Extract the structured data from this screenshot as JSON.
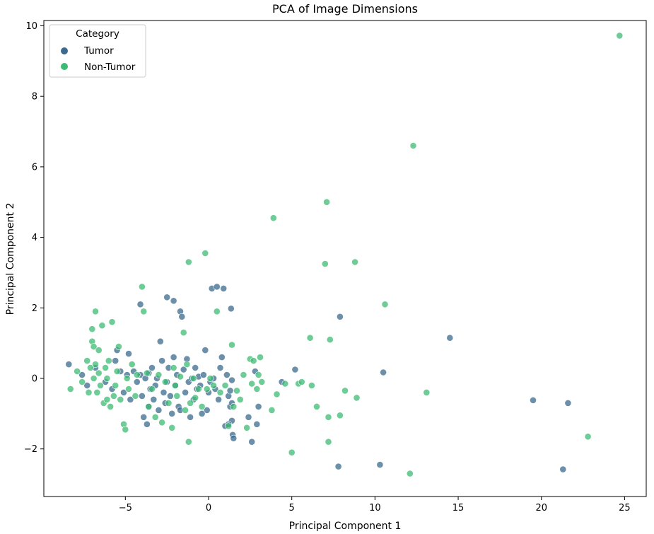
{
  "chart_data": {
    "type": "scatter",
    "title": "PCA of Image Dimensions",
    "xlabel": "Principal Component 1",
    "ylabel": "Principal Component 2",
    "xlim": [
      -9.9,
      26.3
    ],
    "ylim": [
      -3.35,
      10.15
    ],
    "xticks": [
      -5,
      0,
      5,
      10,
      15,
      20,
      25
    ],
    "yticks": [
      -2,
      0,
      2,
      4,
      6,
      8,
      10
    ],
    "grid": false,
    "legend": {
      "title": "Category",
      "position": "top-left"
    },
    "series": [
      {
        "name": "Tumor",
        "color": "#3b6a8e",
        "points": [
          [
            -8.4,
            0.4
          ],
          [
            -7.6,
            0.1
          ],
          [
            -7.3,
            -0.2
          ],
          [
            -6.8,
            0.3
          ],
          [
            -6.2,
            -0.1
          ],
          [
            -5.8,
            -0.3
          ],
          [
            -5.5,
            0.8
          ],
          [
            -5.3,
            0.2
          ],
          [
            -5.1,
            -0.4
          ],
          [
            -4.9,
            0.1
          ],
          [
            -4.7,
            -0.6
          ],
          [
            -4.5,
            0.2
          ],
          [
            -4.3,
            -0.1
          ],
          [
            -4.1,
            0.1
          ],
          [
            -4.0,
            -0.5
          ],
          [
            -3.9,
            -1.1
          ],
          [
            -3.8,
            0.0
          ],
          [
            -3.7,
            -1.3
          ],
          [
            -3.6,
            -0.8
          ],
          [
            -3.5,
            -0.3
          ],
          [
            -3.4,
            0.3
          ],
          [
            -3.3,
            -0.6
          ],
          [
            -3.2,
            -0.2
          ],
          [
            -3.1,
            0.0
          ],
          [
            -3.0,
            -0.9
          ],
          [
            -2.9,
            1.05
          ],
          [
            -2.8,
            0.5
          ],
          [
            -2.7,
            -0.4
          ],
          [
            -2.6,
            -0.7
          ],
          [
            -2.5,
            -0.1
          ],
          [
            -2.4,
            0.3
          ],
          [
            -2.3,
            -0.5
          ],
          [
            -2.2,
            -1.0
          ],
          [
            -2.1,
            0.6
          ],
          [
            -2.0,
            -0.2
          ],
          [
            -1.9,
            0.1
          ],
          [
            -1.8,
            -0.8
          ],
          [
            -1.7,
            1.9
          ],
          [
            -1.6,
            1.75
          ],
          [
            -1.5,
            0.25
          ],
          [
            -1.4,
            -0.4
          ],
          [
            -1.3,
            0.55
          ],
          [
            -1.2,
            -0.1
          ],
          [
            -1.1,
            -1.1
          ],
          [
            -1.0,
            0.0
          ],
          [
            -0.9,
            -0.6
          ],
          [
            -0.8,
            0.3
          ],
          [
            -0.7,
            -0.3
          ],
          [
            -0.6,
            0.05
          ],
          [
            -0.5,
            -0.2
          ],
          [
            -0.3,
            0.1
          ],
          [
            -0.2,
            0.8
          ],
          [
            -0.1,
            -0.9
          ],
          [
            0.0,
            -0.4
          ],
          [
            0.1,
            -0.1
          ],
          [
            0.2,
            2.55
          ],
          [
            0.3,
            0.0
          ],
          [
            0.4,
            -0.3
          ],
          [
            0.5,
            2.6
          ],
          [
            0.6,
            -0.6
          ],
          [
            0.7,
            0.3
          ],
          [
            0.8,
            0.6
          ],
          [
            0.9,
            2.55
          ],
          [
            1.0,
            -1.35
          ],
          [
            1.1,
            0.1
          ],
          [
            1.2,
            -0.5
          ],
          [
            1.3,
            -0.8
          ],
          [
            1.4,
            -0.05
          ],
          [
            1.4,
            -0.7
          ],
          [
            1.35,
            1.98
          ],
          [
            1.4,
            -1.2
          ],
          [
            1.45,
            -1.6
          ],
          [
            1.5,
            -1.7
          ],
          [
            1.3,
            -0.35
          ],
          [
            1.2,
            -1.3
          ],
          [
            2.4,
            -1.1
          ],
          [
            2.6,
            -1.8
          ],
          [
            2.9,
            -1.3
          ],
          [
            3.0,
            -0.8
          ],
          [
            2.8,
            0.2
          ],
          [
            4.4,
            -0.1
          ],
          [
            5.2,
            0.25
          ],
          [
            7.9,
            1.75
          ],
          [
            7.8,
            -2.5
          ],
          [
            10.5,
            0.17
          ],
          [
            10.3,
            -2.45
          ],
          [
            14.5,
            1.15
          ],
          [
            19.5,
            -0.62
          ],
          [
            21.3,
            -2.58
          ],
          [
            21.6,
            -0.7
          ],
          [
            -2.5,
            2.3
          ],
          [
            -2.1,
            2.2
          ],
          [
            -4.1,
            2.1
          ],
          [
            -5.6,
            0.5
          ],
          [
            -4.8,
            0.7
          ],
          [
            -3.6,
            0.15
          ],
          [
            -1.7,
            -0.9
          ],
          [
            -0.4,
            -1.0
          ]
        ]
      },
      {
        "name": "Non-Tumor",
        "color": "#3dbb74",
        "points": [
          [
            -8.3,
            -0.3
          ],
          [
            -7.9,
            0.2
          ],
          [
            -7.6,
            -0.1
          ],
          [
            -7.3,
            0.5
          ],
          [
            -7.1,
            0.3
          ],
          [
            -7.0,
            1.4
          ],
          [
            -7.0,
            1.05
          ],
          [
            -6.9,
            0.9
          ],
          [
            -6.9,
            0.0
          ],
          [
            -6.8,
            1.9
          ],
          [
            -6.8,
            0.4
          ],
          [
            -6.7,
            -0.4
          ],
          [
            -6.6,
            0.15
          ],
          [
            -6.5,
            -0.2
          ],
          [
            -6.4,
            1.5
          ],
          [
            -6.3,
            -0.7
          ],
          [
            -6.2,
            0.3
          ],
          [
            -6.1,
            -0.6
          ],
          [
            -6.0,
            0.5
          ],
          [
            -5.9,
            -0.8
          ],
          [
            -5.8,
            1.6
          ],
          [
            -5.6,
            -0.2
          ],
          [
            -5.5,
            0.2
          ],
          [
            -5.4,
            0.9
          ],
          [
            -5.3,
            -0.6
          ],
          [
            -5.1,
            -1.3
          ],
          [
            -5.0,
            -1.45
          ],
          [
            -4.8,
            -0.3
          ],
          [
            -4.6,
            0.4
          ],
          [
            -4.4,
            -0.5
          ],
          [
            -4.3,
            0.1
          ],
          [
            -4.0,
            2.6
          ],
          [
            -3.9,
            1.9
          ],
          [
            -3.7,
            0.15
          ],
          [
            -3.6,
            -0.8
          ],
          [
            -3.4,
            -0.3
          ],
          [
            -3.2,
            -1.1
          ],
          [
            -3.0,
            0.1
          ],
          [
            -2.8,
            -1.25
          ],
          [
            -2.6,
            -0.1
          ],
          [
            -2.4,
            -0.7
          ],
          [
            -2.2,
            -1.4
          ],
          [
            -2.1,
            0.3
          ],
          [
            -1.9,
            -0.5
          ],
          [
            -1.7,
            0.05
          ],
          [
            -1.5,
            1.3
          ],
          [
            -1.4,
            -0.9
          ],
          [
            -1.3,
            0.4
          ],
          [
            -1.2,
            3.3
          ],
          [
            -1.2,
            -1.8
          ],
          [
            -1.1,
            -0.7
          ],
          [
            -0.9,
            0.0
          ],
          [
            -0.8,
            -0.55
          ],
          [
            -0.6,
            -0.3
          ],
          [
            -0.4,
            -0.8
          ],
          [
            -0.2,
            3.55
          ],
          [
            -0.1,
            -0.3
          ],
          [
            0.1,
            0.0
          ],
          [
            0.3,
            -0.2
          ],
          [
            0.5,
            1.9
          ],
          [
            0.7,
            -0.4
          ],
          [
            1.0,
            -0.2
          ],
          [
            1.2,
            -1.35
          ],
          [
            1.4,
            0.95
          ],
          [
            1.5,
            -0.8
          ],
          [
            1.7,
            -0.35
          ],
          [
            1.9,
            -0.6
          ],
          [
            2.1,
            0.1
          ],
          [
            2.3,
            -1.4
          ],
          [
            2.5,
            0.55
          ],
          [
            2.6,
            -0.15
          ],
          [
            2.7,
            0.5
          ],
          [
            2.9,
            -0.3
          ],
          [
            3.0,
            0.1
          ],
          [
            3.1,
            0.6
          ],
          [
            3.2,
            -0.1
          ],
          [
            3.8,
            -0.9
          ],
          [
            3.9,
            4.55
          ],
          [
            4.1,
            -0.45
          ],
          [
            4.6,
            -0.15
          ],
          [
            5.0,
            -2.1
          ],
          [
            5.4,
            -0.15
          ],
          [
            5.6,
            -0.1
          ],
          [
            6.1,
            1.15
          ],
          [
            6.2,
            -0.2
          ],
          [
            6.5,
            -0.8
          ],
          [
            7.0,
            3.25
          ],
          [
            7.1,
            5.0
          ],
          [
            7.2,
            -1.1
          ],
          [
            7.3,
            1.1
          ],
          [
            7.2,
            -1.8
          ],
          [
            7.9,
            -1.05
          ],
          [
            8.2,
            -0.35
          ],
          [
            8.8,
            3.3
          ],
          [
            8.9,
            -0.55
          ],
          [
            10.6,
            2.1
          ],
          [
            12.1,
            -2.7
          ],
          [
            12.3,
            6.6
          ],
          [
            13.1,
            -0.4
          ],
          [
            22.8,
            -1.65
          ],
          [
            24.7,
            9.72
          ],
          [
            -6.1,
            0.0
          ],
          [
            -5.7,
            -0.5
          ],
          [
            -6.6,
            0.8
          ],
          [
            -7.2,
            -0.4
          ],
          [
            -4.9,
            0.0
          ],
          [
            -2.0,
            -0.2
          ]
        ]
      }
    ]
  }
}
